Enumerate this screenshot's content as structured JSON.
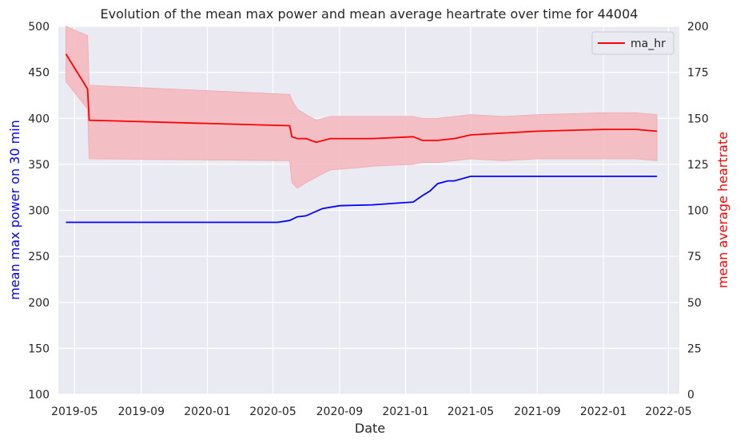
{
  "chart_data": {
    "type": "line",
    "title": "Evolution of the mean max power and mean average heartrate over time for 44004",
    "xlabel": "Date",
    "ylabel_left": "mean max power on 30 min",
    "ylabel_right": "mean average heartrate",
    "ylim_left": [
      100,
      500
    ],
    "ylim_right": [
      0,
      200
    ],
    "x_tick_labels": [
      "2019-05",
      "2019-09",
      "2020-01",
      "2020-05",
      "2020-09",
      "2021-01",
      "2021-05",
      "2021-09",
      "2022-01",
      "2022-05"
    ],
    "y_left_ticks": [
      100,
      150,
      200,
      250,
      300,
      350,
      400,
      450,
      500
    ],
    "y_right_ticks": [
      0,
      25,
      50,
      75,
      100,
      125,
      150,
      175,
      200
    ],
    "grid": true,
    "legend": {
      "position": "top-right",
      "entries": [
        {
          "label": "ma_hr",
          "color": "#ff0000"
        }
      ]
    },
    "colors": {
      "power": "#0000ff",
      "hr": "#ff0000",
      "band": "#f4b6bc",
      "background": "#eaeaf2",
      "grid": "#ffffff",
      "ylabel_left": "#0000ff",
      "ylabel_right": "#ff0000"
    },
    "series": [
      {
        "axis": "left",
        "x": [
          "2019-04-15",
          "2019-06-01",
          "2019-09-01",
          "2020-01-01",
          "2020-05-10",
          "2020-06-01",
          "2020-06-15",
          "2020-07-01",
          "2020-07-20",
          "2020-08-01",
          "2020-09-01",
          "2020-11-01",
          "2021-01-15",
          "2021-02-01",
          "2021-02-15",
          "2021-03-01",
          "2021-03-20",
          "2021-04-01",
          "2021-05-01",
          "2021-07-01",
          "2022-04-10"
        ],
        "values": [
          287,
          287,
          287,
          287,
          287,
          289,
          293,
          294,
          299,
          302,
          305,
          306,
          309,
          316,
          321,
          329,
          332,
          332,
          337,
          337,
          337
        ]
      },
      {
        "name": "ma_hr",
        "axis": "right",
        "x": [
          "2019-04-15",
          "2019-05-25",
          "2019-05-28",
          "2020-06-01",
          "2020-06-05",
          "2020-06-15",
          "2020-07-01",
          "2020-07-20",
          "2020-08-15",
          "2020-10-01",
          "2020-11-01",
          "2021-01-15",
          "2021-02-01",
          "2021-03-01",
          "2021-04-01",
          "2021-05-01",
          "2021-07-01",
          "2021-09-01",
          "2022-01-01",
          "2022-03-01",
          "2022-04-10"
        ],
        "values": [
          185,
          166,
          149,
          146,
          140,
          139,
          139,
          137,
          139,
          139,
          139,
          140,
          138,
          138,
          139,
          141,
          142,
          143,
          144,
          144,
          143
        ],
        "band_upper": [
          200,
          195,
          168,
          163,
          160,
          155,
          152,
          149,
          151,
          151,
          151,
          151,
          150,
          150,
          151,
          152,
          151,
          152,
          153,
          153,
          152
        ],
        "band_lower": [
          170,
          155,
          128,
          127,
          115,
          112,
          115,
          118,
          122,
          123,
          124,
          125,
          126,
          126,
          127,
          128,
          127,
          128,
          128,
          128,
          127
        ]
      }
    ]
  }
}
